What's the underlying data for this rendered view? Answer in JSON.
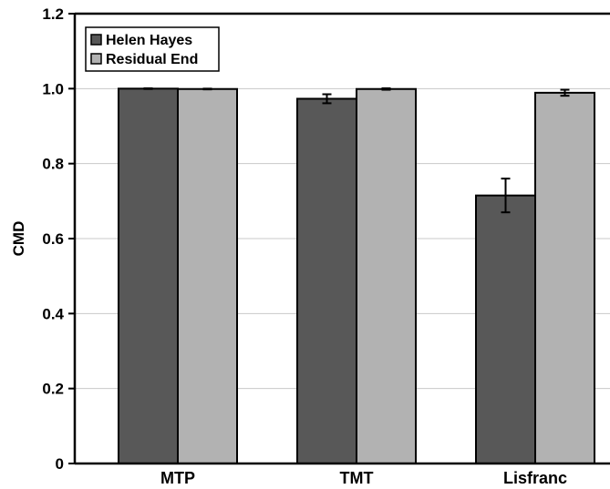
{
  "chart_data": {
    "type": "bar",
    "categories": [
      "MTP",
      "TMT",
      "Lisfranc"
    ],
    "series": [
      {
        "name": "Helen Hayes",
        "values": [
          1.0,
          0.973,
          0.715
        ],
        "errors": [
          0.001,
          0.012,
          0.045
        ],
        "color": "#585858"
      },
      {
        "name": "Residual End",
        "values": [
          0.999,
          0.999,
          0.989
        ],
        "errors": [
          0.001,
          0.002,
          0.008
        ],
        "color": "#b2b2b2"
      }
    ],
    "ylabel": "CMD",
    "xlabel": "",
    "title": "",
    "ylim": [
      0,
      1.2
    ],
    "yticks": [
      {
        "value": 0,
        "label": "0"
      },
      {
        "value": 0.2,
        "label": "0.2"
      },
      {
        "value": 0.4,
        "label": "0.4"
      },
      {
        "value": 0.6,
        "label": "0.6"
      },
      {
        "value": 0.8,
        "label": "0.8"
      },
      {
        "value": 1.0,
        "label": "1.0"
      },
      {
        "value": 1.2,
        "label": "1.2"
      }
    ],
    "grid": true,
    "legend_position": "top-left"
  }
}
